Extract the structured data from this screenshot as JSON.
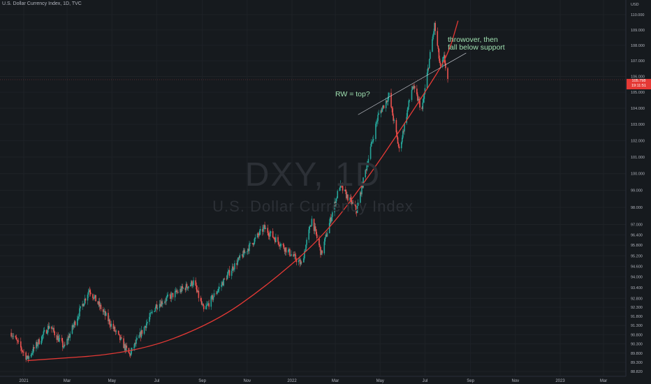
{
  "header": {
    "title": "U.S. Dollar Currency Index, 1D, TVC"
  },
  "watermark": {
    "symbol": "DXY, 1D",
    "name": "U.S. Dollar Currency Index"
  },
  "annotations": {
    "note1": [
      "throwover, then",
      "fall below support"
    ],
    "note2": "RW = top?"
  },
  "price_tag": {
    "price": "105.798",
    "countdown": "19:11:51"
  },
  "colors": {
    "up": "#26a69a",
    "down": "#ef5350",
    "curve": "#e53935",
    "trendline": "#d1d4dc",
    "annotation": "#9fe0b0"
  },
  "chart_data": {
    "type": "candlestick",
    "title": "U.S. Dollar Currency Index, 1D, TVC",
    "y_axis": {
      "unit": "USD",
      "ticks": [
        110.0,
        109.0,
        108.0,
        107.0,
        106.0,
        105.0,
        104.0,
        103.0,
        102.0,
        101.0,
        100.0,
        99.0,
        98.0,
        97.0,
        96.4,
        95.8,
        95.2,
        94.6,
        94.0,
        93.4,
        92.8,
        92.3,
        91.8,
        91.3,
        90.8,
        90.3,
        89.8,
        89.3,
        88.82
      ],
      "tick_labels": [
        "110.000",
        "109.000",
        "108.000",
        "107.000",
        "106.000",
        "105.000",
        "104.000",
        "103.000",
        "102.000",
        "101.000",
        "100.000",
        "99.000",
        "98.000",
        "97.000",
        "96.400",
        "95.800",
        "95.200",
        "94.600",
        "94.000",
        "93.400",
        "92.800",
        "92.300",
        "91.800",
        "91.300",
        "90.800",
        "90.300",
        "89.800",
        "89.300",
        "88.820"
      ],
      "scale": "log",
      "range": [
        88.82,
        110.0
      ]
    },
    "x_axis": {
      "tick_labels": [
        "2021",
        "Mar",
        "May",
        "Jul",
        "Sep",
        "Nov",
        "2022",
        "Mar",
        "May",
        "Jul",
        "Sep",
        "Nov",
        "2023",
        "Mar"
      ]
    },
    "price_path_keypoints": [
      {
        "date": "2020-12-15",
        "value": 90.9
      },
      {
        "date": "2021-01-06",
        "value": 89.5
      },
      {
        "date": "2021-02-05",
        "value": 91.3
      },
      {
        "date": "2021-02-25",
        "value": 90.1
      },
      {
        "date": "2021-03-31",
        "value": 93.3
      },
      {
        "date": "2021-05-25",
        "value": 89.7
      },
      {
        "date": "2021-06-30",
        "value": 92.4
      },
      {
        "date": "2021-08-20",
        "value": 93.7
      },
      {
        "date": "2021-09-03",
        "value": 92.1
      },
      {
        "date": "2021-10-12",
        "value": 94.5
      },
      {
        "date": "2021-11-24",
        "value": 96.8
      },
      {
        "date": "2022-01-14",
        "value": 94.7
      },
      {
        "date": "2022-01-28",
        "value": 97.3
      },
      {
        "date": "2022-02-10",
        "value": 95.3
      },
      {
        "date": "2022-03-07",
        "value": 99.3
      },
      {
        "date": "2022-03-30",
        "value": 97.8
      },
      {
        "date": "2022-04-28",
        "value": 103.5
      },
      {
        "date": "2022-05-13",
        "value": 104.8
      },
      {
        "date": "2022-05-27",
        "value": 101.4
      },
      {
        "date": "2022-06-14",
        "value": 105.4
      },
      {
        "date": "2022-06-27",
        "value": 103.9
      },
      {
        "date": "2022-07-14",
        "value": 109.3
      },
      {
        "date": "2022-07-22",
        "value": 106.5
      },
      {
        "date": "2022-07-27",
        "value": 107.2
      },
      {
        "date": "2022-08-01",
        "value": 105.8
      }
    ],
    "last_price": 105.798,
    "curve_support": [
      {
        "date": "2021-01-06",
        "value": 89.4
      },
      {
        "date": "2021-06-01",
        "value": 89.8
      },
      {
        "date": "2021-09-15",
        "value": 91.4
      },
      {
        "date": "2021-12-01",
        "value": 93.6
      },
      {
        "date": "2022-02-15",
        "value": 96.4
      },
      {
        "date": "2022-04-15",
        "value": 99.8
      },
      {
        "date": "2022-06-01",
        "value": 102.9
      },
      {
        "date": "2022-07-01",
        "value": 105.0
      },
      {
        "date": "2022-08-01",
        "value": 107.3
      },
      {
        "date": "2022-08-15",
        "value": 109.6
      }
    ],
    "trendline": [
      {
        "date": "2022-04-01",
        "value": 103.6
      },
      {
        "date": "2022-08-26",
        "value": 107.5
      }
    ]
  }
}
